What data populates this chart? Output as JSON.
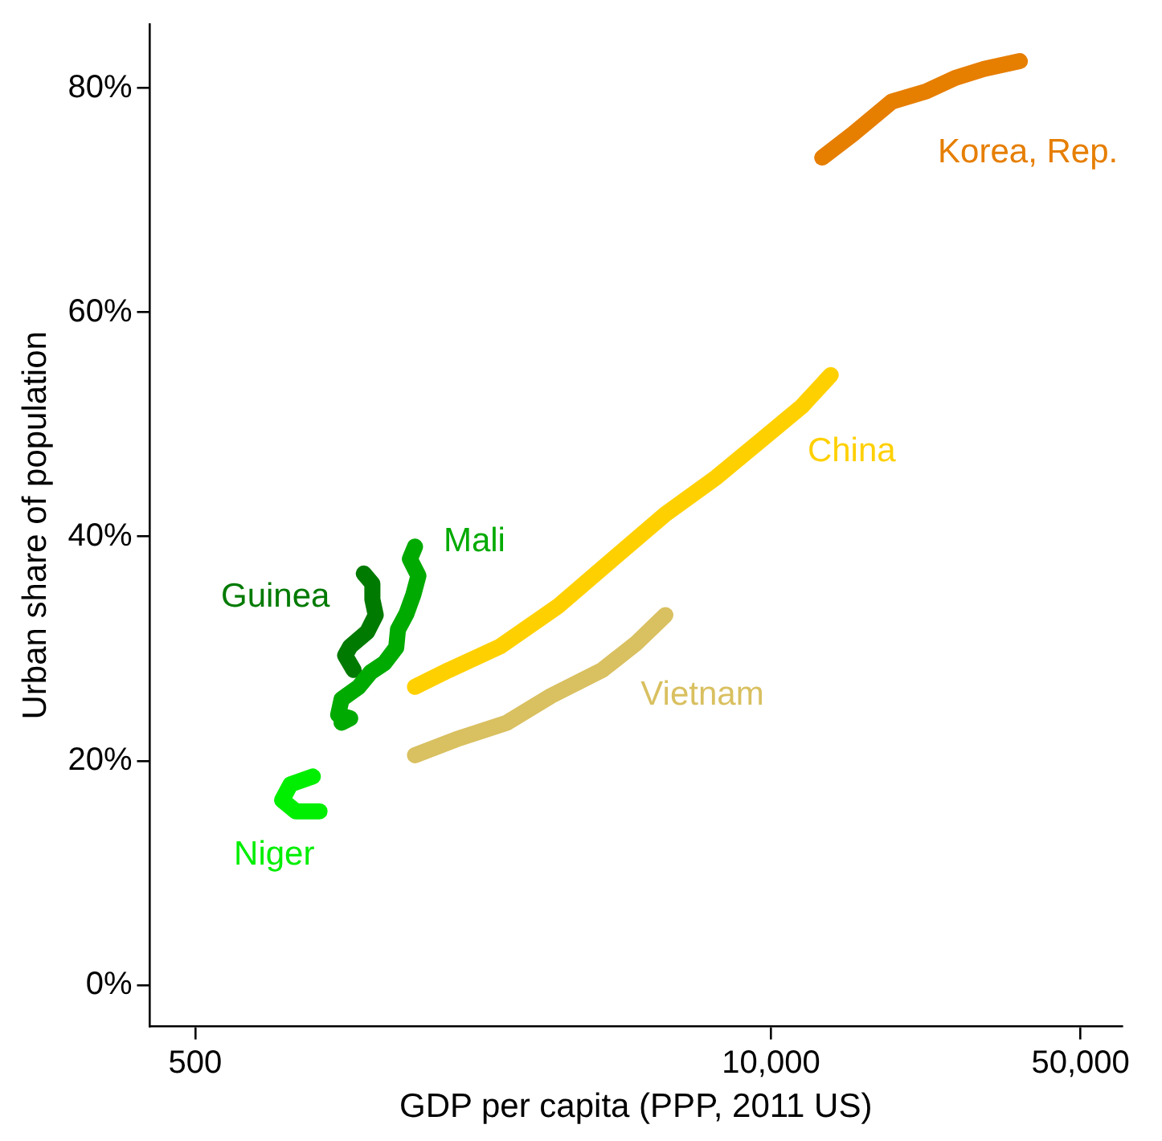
{
  "chart_data": {
    "type": "line",
    "xlabel": "GDP per capita (PPP, 2011 US)",
    "ylabel": "Urban share of population",
    "log": "x",
    "xlim": [
      395,
      62000
    ],
    "xticks": [
      500,
      {
        "value": 10000,
        "label": "10,000"
      },
      {
        "value": 50000,
        "label": "50,000"
      }
    ],
    "ylim": [
      -3.7,
      85.7
    ],
    "yticks": [
      {
        "value": 0,
        "label": "0%"
      },
      {
        "value": 20,
        "label": "20%"
      },
      {
        "value": 40,
        "label": "40%"
      },
      {
        "value": 60,
        "label": "60%"
      },
      {
        "value": 80,
        "label": "80%"
      }
    ],
    "grid": false,
    "legend": false,
    "marker": "none",
    "line_style": "solid",
    "series": [
      {
        "name": "Korea, Rep.",
        "color": "#e67e00",
        "x": [
          13050,
          15310,
          18760,
          22400,
          26060,
          30290,
          36480
        ],
        "values": [
          73.8,
          75.9,
          78.8,
          79.7,
          80.9,
          81.7,
          82.4
        ]
      },
      {
        "name": "China",
        "color": "#ffd000",
        "x": [
          1569,
          1873,
          2443,
          3305,
          4424,
          5771,
          7530,
          9566,
          11730,
          13640
        ],
        "values": [
          26.6,
          28.1,
          30.2,
          33.8,
          38.1,
          42.0,
          45.3,
          48.7,
          51.6,
          54.4
        ]
      },
      {
        "name": "Vietnam",
        "color": "#d9c060",
        "x": [
          1569,
          1940,
          2531,
          3187,
          4155,
          4963,
          5771
        ],
        "values": [
          20.5,
          21.9,
          23.4,
          25.8,
          28.1,
          30.5,
          33.0
        ]
      },
      {
        "name": "Mali",
        "color": "#00aa00",
        "x": [
          1569,
          1528,
          1597,
          1555,
          1500,
          1436,
          1423,
          1337,
          1246,
          1171,
          1071,
          1052,
          1120,
          1071
        ],
        "values": [
          39.1,
          38.0,
          36.5,
          34.8,
          33.1,
          31.7,
          30.1,
          28.7,
          27.9,
          26.6,
          25.5,
          24.1,
          23.8,
          23.4
        ]
      },
      {
        "name": "Guinea",
        "color": "#007a00",
        "x": [
          1202,
          1257,
          1257,
          1279,
          1224,
          1120,
          1091,
          1140
        ],
        "values": [
          36.7,
          35.8,
          34.4,
          33.0,
          31.5,
          30.2,
          29.4,
          28.1
        ]
      },
      {
        "name": "Niger",
        "color": "#00ee00",
        "x": [
          922,
          821,
          786,
          844,
          955
        ],
        "values": [
          18.6,
          17.9,
          16.5,
          15.5,
          15.5
        ]
      }
    ]
  }
}
